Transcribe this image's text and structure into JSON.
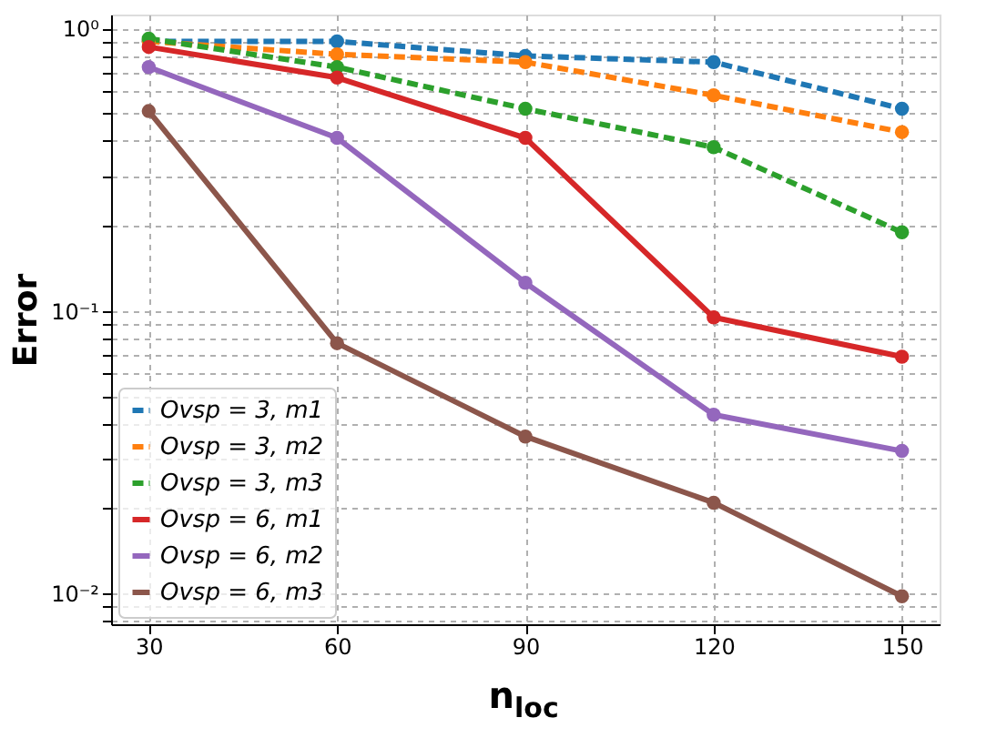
{
  "chart_data": {
    "type": "line",
    "xlabel": "n$_{loc}$",
    "ylabel": "Error",
    "log": "y",
    "grid": true,
    "legend": "bottom left",
    "marker": "circle",
    "x": [
      30,
      60,
      90,
      120,
      150
    ],
    "xlim": [
      24,
      156
    ],
    "xticks": [
      30,
      60,
      90,
      120,
      150
    ],
    "ylim": [
      0.0078,
      1.12
    ],
    "yticks": [
      {
        "value": 1,
        "label": "10⁰"
      },
      {
        "value": 0.1,
        "label": "10⁻¹"
      },
      {
        "value": 0.01,
        "label": "10⁻²"
      },
      {
        "value": 0.008,
        "label": null
      },
      {
        "value": 0.009,
        "label": null
      },
      {
        "value": 0.02,
        "label": null
      },
      {
        "value": 0.03,
        "label": null
      },
      {
        "value": 0.04,
        "label": null
      },
      {
        "value": 0.05,
        "label": null
      },
      {
        "value": 0.06,
        "label": null
      },
      {
        "value": 0.07,
        "label": null
      },
      {
        "value": 0.08,
        "label": null
      },
      {
        "value": 0.09,
        "label": null
      },
      {
        "value": 0.2,
        "label": null
      },
      {
        "value": 0.3,
        "label": null
      },
      {
        "value": 0.4,
        "label": null
      },
      {
        "value": 0.5,
        "label": null
      },
      {
        "value": 0.6,
        "label": null
      },
      {
        "value": 0.7,
        "label": null
      },
      {
        "value": 0.8,
        "label": null
      },
      {
        "value": 0.9,
        "label": null
      }
    ],
    "series": [
      {
        "name": "Ovsp = 3, m1",
        "color": "#1f77b4",
        "line_style": "dashed",
        "values": [
          0.9,
          0.9,
          0.8,
          0.76,
          0.52
        ]
      },
      {
        "name": "Ovsp = 3, m2",
        "color": "#ff7f0e",
        "line_style": "dashed",
        "values": [
          0.9,
          0.81,
          0.76,
          0.58,
          0.43
        ]
      },
      {
        "name": "Ovsp = 3, m3",
        "color": "#2ca02c",
        "line_style": "dashed",
        "values": [
          0.92,
          0.73,
          0.52,
          0.38,
          0.19
        ]
      },
      {
        "name": "Ovsp = 6, m1",
        "color": "#d62728",
        "line_style": "solid",
        "values": [
          0.86,
          0.67,
          0.41,
          0.095,
          0.069
        ]
      },
      {
        "name": "Ovsp = 6, m2",
        "color": "#9467bd",
        "line_style": "solid",
        "values": [
          0.73,
          0.41,
          0.126,
          0.043,
          0.032
        ]
      },
      {
        "name": "Ovsp = 6, m3",
        "color": "#8c564b",
        "line_style": "solid",
        "values": [
          0.51,
          0.077,
          0.036,
          0.021,
          0.0098
        ]
      }
    ]
  }
}
